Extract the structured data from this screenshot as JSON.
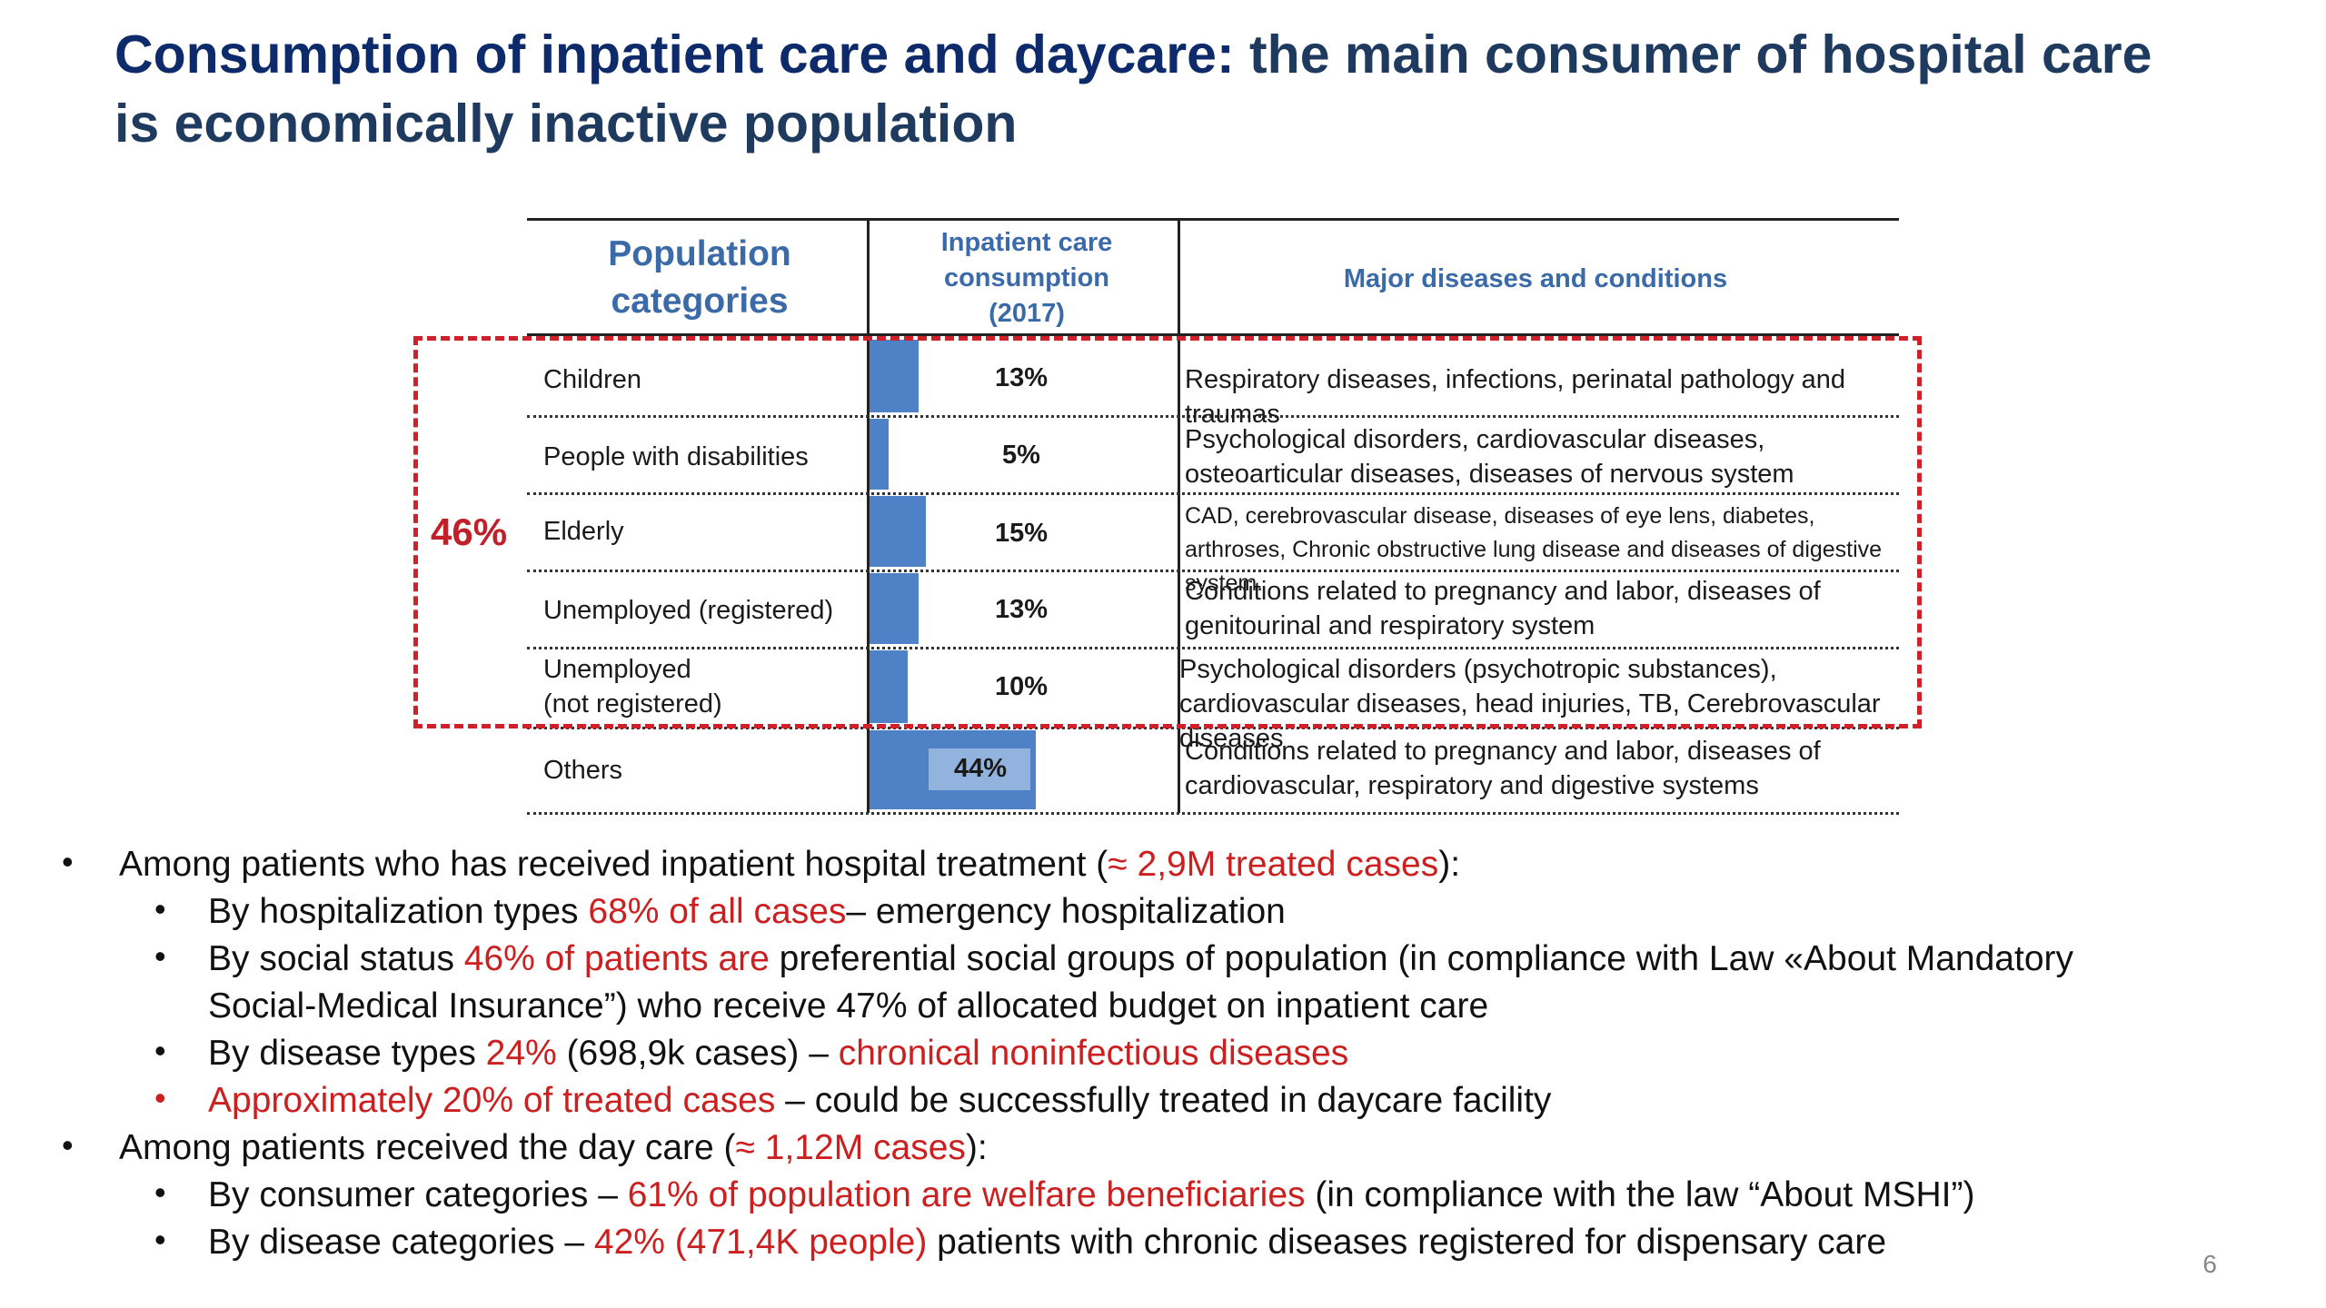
{
  "title": {
    "part1": "Consumption of inpatient care and daycare:",
    "part2": " the main consumer of hospital care is economically inactive population"
  },
  "table": {
    "headers": {
      "population": "Population categories",
      "consumption": "Inpatient care consumption (2017)",
      "diseases": "Major diseases and conditions"
    },
    "group_label": "46%",
    "rows": [
      {
        "category": "Children",
        "value": 13,
        "label": "13%",
        "diseases": "Respiratory diseases, infections, perinatal pathology and traumas"
      },
      {
        "category": "People with disabilities",
        "value": 5,
        "label": "5%",
        "diseases": "Psychological disorders, cardiovascular diseases, osteoarticular diseases, diseases of nervous system"
      },
      {
        "category": "Elderly",
        "value": 15,
        "label": "15%",
        "diseases": "CAD, cerebrovascular disease, diseases of eye lens, diabetes, arthroses, Chronic obstructive lung disease and diseases of digestive system."
      },
      {
        "category": "Unemployed (registered)",
        "value": 13,
        "label": "13%",
        "diseases": "Conditions related to pregnancy and labor, diseases of genitourinal and respiratory system"
      },
      {
        "category": "Unemployed (not registered)",
        "value": 10,
        "label": "10%",
        "diseases": "Psychological disorders (psychotropic substances), cardiovascular diseases, head injuries, TB, Cerebrovascular diseases"
      },
      {
        "category": "Others",
        "value": 44,
        "label": "44%",
        "diseases": "Conditions related to pregnancy and labor, diseases of cardiovascular, respiratory and digestive systems"
      }
    ]
  },
  "bullets": {
    "b1": {
      "t1": "Among patients who has received inpatient hospital treatment (",
      "r1": "≈ 2,9M treated cases",
      "t2": "):"
    },
    "b1a": {
      "t1": "By hospitalization types ",
      "r1": "68% of all cases",
      "t2": "– emergency hospitalization"
    },
    "b1b": {
      "t1": "By social status ",
      "r1": "46% of patients are",
      "t2": " preferential social groups of population (in compliance with Law «About Mandatory Social-Medical Insurance”) who receive 47% of allocated budget on inpatient care"
    },
    "b1c": {
      "t1": "By disease types ",
      "r1": "24%",
      "t2": " (698,9k cases) – ",
      "r2": "chronical noninfectious diseases"
    },
    "b1d": {
      "r1": "Approximately 20% of treated cases",
      "t1": " – could be successfully treated in daycare facility"
    },
    "b2": {
      "t1": "Among patients received the day care (",
      "r1": "≈ 1,12M cases",
      "t2": "):"
    },
    "b2a": {
      "t1": "By consumer categories – ",
      "r1": "61% of population are welfare beneficiaries",
      "t2": " (in compliance with the law “About MSHI”)"
    },
    "b2b": {
      "t1": "By disease categories – ",
      "r1": "42% (471,4K people)",
      "t2": " patients with chronic diseases registered for dispensary care"
    }
  },
  "page_number": "6",
  "colors": {
    "bar": "#4f81c7",
    "accent_red": "#cc1f1f",
    "header_blue": "#3b6aa8",
    "title_navy": "#1f3a5f"
  }
}
